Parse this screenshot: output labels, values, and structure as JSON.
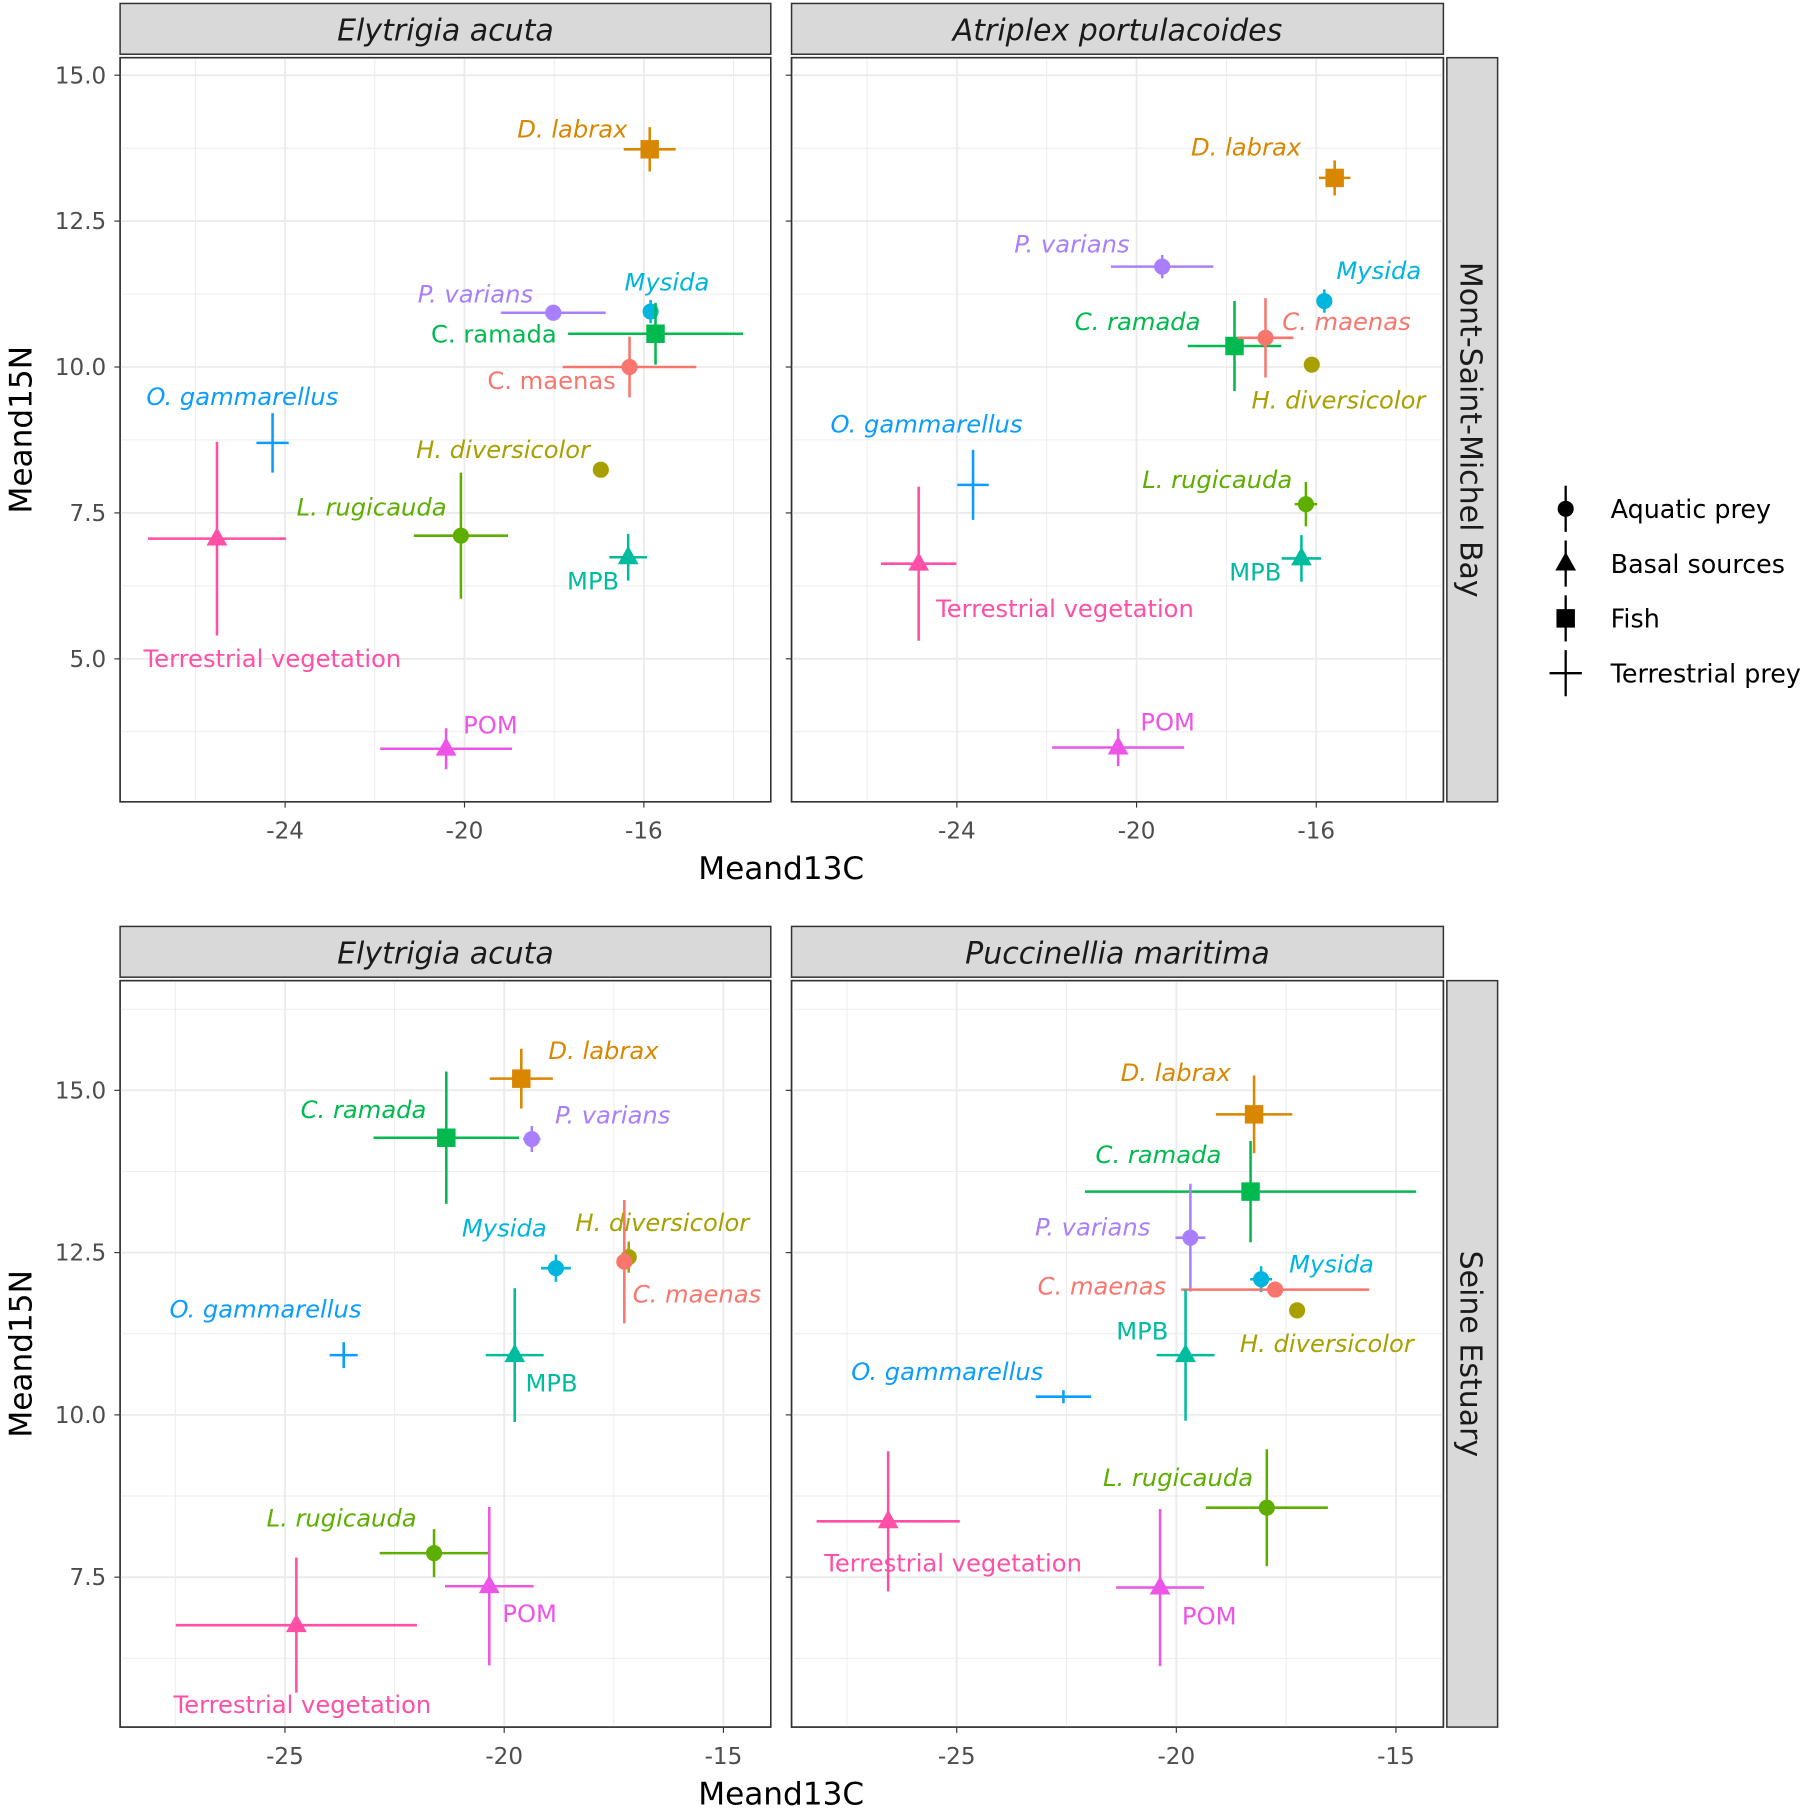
{
  "chart_data": [
    {
      "type": "scatter",
      "row": "Mont-Saint-Michel Bay",
      "column": "Elytrigia acuta",
      "xlabel": "Meand13C",
      "ylabel": "Meand15N",
      "xlim": [
        -27.68,
        -13.17
      ],
      "ylim": [
        2.55,
        15.3
      ],
      "xticks": [
        -24,
        -20,
        -16
      ],
      "yticks": [
        5.0,
        7.5,
        10.0,
        12.5,
        15.0
      ],
      "grid": true,
      "points": [
        {
          "name": "D. labrax",
          "group": "Fish",
          "x": -15.87,
          "y": 13.73,
          "xerr": 0.58,
          "yerr": 0.38
        },
        {
          "name": "P. varians",
          "group": "Aquatic prey",
          "x": -18.02,
          "y": 10.93,
          "xerr": 1.17,
          "yerr": 0.1
        },
        {
          "name": "Mysida",
          "group": "Aquatic prey",
          "x": -15.85,
          "y": 10.95,
          "xerr": 0.1,
          "yerr": 0.2
        },
        {
          "name": "C. ramada",
          "group": "Fish",
          "x": -15.74,
          "y": 10.57,
          "xerr": 1.95,
          "yerr": 0.53
        },
        {
          "name": "C. maenas",
          "group": "Aquatic prey",
          "x": -16.32,
          "y": 10.0,
          "xerr": 1.49,
          "yerr": 0.52
        },
        {
          "name": "O. gammarellus",
          "group": "Terrestrial prey",
          "x": -24.28,
          "y": 8.7,
          "xerr": 0.36,
          "yerr": 0.51
        },
        {
          "name": "Terrestrial vegetation",
          "group": "Basal sources",
          "x": -25.52,
          "y": 7.06,
          "xerr": 1.54,
          "yerr": 1.66
        },
        {
          "name": "H. diversicolor",
          "group": "Aquatic prey",
          "x": -16.96,
          "y": 8.24,
          "xerr": 0,
          "yerr": 0
        },
        {
          "name": "L. rugicauda",
          "group": "Aquatic prey",
          "x": -20.08,
          "y": 7.11,
          "xerr": 1.05,
          "yerr": 1.08
        },
        {
          "name": "MPB",
          "group": "Basal sources",
          "x": -16.35,
          "y": 6.74,
          "xerr": 0.42,
          "yerr": 0.4
        },
        {
          "name": "POM",
          "group": "Basal sources",
          "x": -20.41,
          "y": 3.46,
          "xerr": 1.47,
          "yerr": 0.35
        }
      ]
    },
    {
      "type": "scatter",
      "row": "Mont-Saint-Michel Bay",
      "column": "Atriplex portulacoides",
      "xlabel": "Meand13C",
      "ylabel": "",
      "xlim": [
        -27.68,
        -13.17
      ],
      "ylim": [
        2.55,
        15.3
      ],
      "xticks": [
        -24,
        -20,
        -16
      ],
      "yticks": [
        5.0,
        7.5,
        10.0,
        12.5,
        15.0
      ],
      "grid": true,
      "points": [
        {
          "name": "D. labrax",
          "group": "Fish",
          "x": -15.59,
          "y": 13.24,
          "xerr": 0.35,
          "yerr": 0.3
        },
        {
          "name": "P. varians",
          "group": "Aquatic prey",
          "x": -19.43,
          "y": 11.72,
          "xerr": 1.14,
          "yerr": 0.2
        },
        {
          "name": "Mysida",
          "group": "Aquatic prey",
          "x": -15.82,
          "y": 11.13,
          "xerr": 0.1,
          "yerr": 0.2
        },
        {
          "name": "C. ramada",
          "group": "Fish",
          "x": -17.82,
          "y": 10.36,
          "xerr": 1.04,
          "yerr": 0.77
        },
        {
          "name": "C. maenas",
          "group": "Aquatic prey",
          "x": -17.13,
          "y": 10.5,
          "xerr": 0.62,
          "yerr": 0.68
        },
        {
          "name": "H. diversicolor",
          "group": "Aquatic prey",
          "x": -16.1,
          "y": 10.04,
          "xerr": 0,
          "yerr": 0
        },
        {
          "name": "O. gammarellus",
          "group": "Terrestrial prey",
          "x": -23.64,
          "y": 7.98,
          "xerr": 0.35,
          "yerr": 0.6
        },
        {
          "name": "L. rugicauda",
          "group": "Aquatic prey",
          "x": -16.23,
          "y": 7.65,
          "xerr": 0.25,
          "yerr": 0.38
        },
        {
          "name": "MPB",
          "group": "Basal sources",
          "x": -16.33,
          "y": 6.72,
          "xerr": 0.44,
          "yerr": 0.4
        },
        {
          "name": "Terrestrial vegetation",
          "group": "Basal sources",
          "x": -24.85,
          "y": 6.63,
          "xerr": 0.84,
          "yerr": 1.32
        },
        {
          "name": "POM",
          "group": "Basal sources",
          "x": -20.41,
          "y": 3.48,
          "xerr": 1.47,
          "yerr": 0.32
        }
      ]
    },
    {
      "type": "scatter",
      "row": "Seine Estuary",
      "column": "Elytrigia acuta",
      "xlabel": "Meand13C",
      "ylabel": "Meand15N",
      "xlim": [
        -28.76,
        -13.92
      ],
      "ylim": [
        5.19,
        16.69
      ],
      "xticks": [
        -25,
        -20,
        -15
      ],
      "yticks": [
        7.5,
        10.0,
        12.5,
        15.0
      ],
      "grid": true,
      "points": [
        {
          "name": "D. labrax",
          "group": "Fish",
          "x": -19.61,
          "y": 15.18,
          "xerr": 0.72,
          "yerr": 0.46
        },
        {
          "name": "C. ramada",
          "group": "Fish",
          "x": -21.32,
          "y": 14.27,
          "xerr": 1.66,
          "yerr": 1.02
        },
        {
          "name": "P. varians",
          "group": "Aquatic prey",
          "x": -19.37,
          "y": 14.25,
          "xerr": 0.2,
          "yerr": 0.2
        },
        {
          "name": "Mysida",
          "group": "Aquatic prey",
          "x": -18.82,
          "y": 12.26,
          "xerr": 0.34,
          "yerr": 0.21
        },
        {
          "name": "H. diversicolor",
          "group": "Aquatic prey",
          "x": -17.16,
          "y": 12.43,
          "xerr": 0.1,
          "yerr": 0.24
        },
        {
          "name": "C. maenas",
          "group": "Aquatic prey",
          "x": -17.26,
          "y": 12.36,
          "xerr": 0.1,
          "yerr": 0.95
        },
        {
          "name": "O. gammarellus",
          "group": "Terrestrial prey",
          "x": -23.66,
          "y": 10.92,
          "xerr": 0.32,
          "yerr": 0.2
        },
        {
          "name": "MPB",
          "group": "Basal sources",
          "x": -19.76,
          "y": 10.92,
          "xerr": 0.66,
          "yerr": 1.03
        },
        {
          "name": "L. rugicauda",
          "group": "Aquatic prey",
          "x": -21.6,
          "y": 7.87,
          "xerr": 1.24,
          "yerr": 0.37
        },
        {
          "name": "POM",
          "group": "Basal sources",
          "x": -20.34,
          "y": 7.36,
          "xerr": 1.01,
          "yerr": 1.22
        },
        {
          "name": "Terrestrial vegetation",
          "group": "Basal sources",
          "x": -24.74,
          "y": 6.76,
          "xerr": 2.75,
          "yerr": 1.04
        }
      ]
    },
    {
      "type": "scatter",
      "row": "Seine Estuary",
      "column": "Puccinellia maritima",
      "xlabel": "Meand13C",
      "ylabel": "",
      "xlim": [
        -28.76,
        -13.92
      ],
      "ylim": [
        5.19,
        16.69
      ],
      "xticks": [
        -25,
        -20,
        -15
      ],
      "yticks": [
        7.5,
        10.0,
        12.5,
        15.0
      ],
      "grid": true,
      "points": [
        {
          "name": "D. labrax",
          "group": "Fish",
          "x": -18.23,
          "y": 14.63,
          "xerr": 0.87,
          "yerr": 0.6
        },
        {
          "name": "C. ramada",
          "group": "Fish",
          "x": -18.31,
          "y": 13.44,
          "xerr": 3.77,
          "yerr": 0.78
        },
        {
          "name": "P. varians",
          "group": "Aquatic prey",
          "x": -19.68,
          "y": 12.73,
          "xerr": 0.34,
          "yerr": 0.83
        },
        {
          "name": "Mysida",
          "group": "Aquatic prey",
          "x": -18.07,
          "y": 12.09,
          "xerr": 0.25,
          "yerr": 0.2
        },
        {
          "name": "C. maenas",
          "group": "Aquatic prey",
          "x": -17.75,
          "y": 11.93,
          "xerr": 2.14,
          "yerr": 0.1
        },
        {
          "name": "MPB",
          "group": "Basal sources",
          "x": -19.79,
          "y": 10.92,
          "xerr": 0.66,
          "yerr": 1.01
        },
        {
          "name": "H. diversicolor",
          "group": "Aquatic prey",
          "x": -17.25,
          "y": 11.61,
          "xerr": 0,
          "yerr": 0
        },
        {
          "name": "O. gammarellus",
          "group": "Terrestrial prey",
          "x": -22.57,
          "y": 10.28,
          "xerr": 0.63,
          "yerr": 0.1
        },
        {
          "name": "L. rugicauda",
          "group": "Aquatic prey",
          "x": -17.94,
          "y": 8.57,
          "xerr": 1.39,
          "yerr": 0.9
        },
        {
          "name": "Terrestrial vegetation",
          "group": "Basal sources",
          "x": -26.56,
          "y": 8.36,
          "xerr": 1.63,
          "yerr": 1.08
        },
        {
          "name": "POM",
          "group": "Basal sources",
          "x": -20.37,
          "y": 7.34,
          "xerr": 1.0,
          "yerr": 1.21
        }
      ]
    }
  ],
  "colors": {
    "C. maenas": "#F8766D",
    "D. labrax": "#D98600",
    "H. diversicolor": "#A8A000",
    "L. rugicauda": "#5EAE00",
    "C. ramada": "#00B94F",
    "MPB": "#00BC9F",
    "Mysida": "#00B5DE",
    "O. gammarellus": "#0A9CFF",
    "P. varians": "#A97FFF",
    "POM": "#EC55E8",
    "Terrestrial vegetation": "#FF4FA6"
  },
  "legend": {
    "placement": "right",
    "items": [
      {
        "label": "Aquatic prey",
        "shape": "circle"
      },
      {
        "label": "Basal sources",
        "shape": "triangle"
      },
      {
        "label": "Fish",
        "shape": "square"
      },
      {
        "label": "Terrestrial prey",
        "shape": "cross"
      }
    ]
  }
}
